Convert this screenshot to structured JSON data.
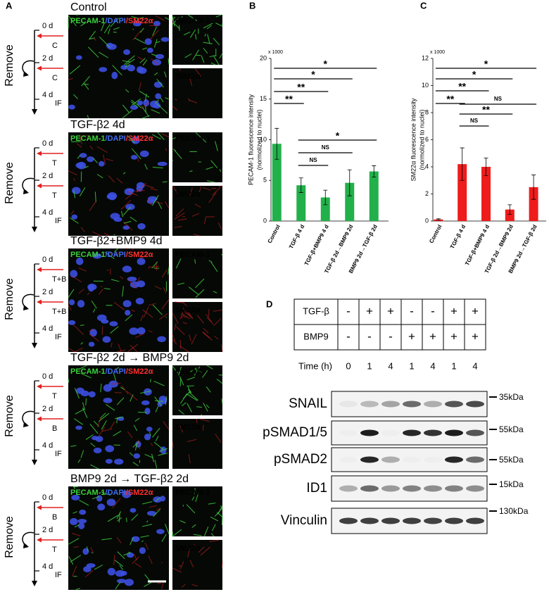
{
  "panel_labels": {
    "a": "A",
    "b": "B",
    "c": "C",
    "d": "D"
  },
  "panel_a": {
    "stain": {
      "pecam": "PECAM-1",
      "dapi": "/DAPI",
      "sm22": "/SM22α",
      "sm22_alone": "SM22α"
    },
    "timeline": {
      "remove": "Remove",
      "day0": "0 d",
      "day2": "2 d",
      "day4": "4 d",
      "readout": "IF"
    },
    "rows": [
      {
        "title": "Control",
        "treatments": [
          "C",
          "C"
        ]
      },
      {
        "title": "TGF-β2 4d",
        "treatments": [
          "T",
          "T"
        ]
      },
      {
        "title": "TGF-β2+BMP9 4d",
        "treatments": [
          "T+B",
          "T+B"
        ]
      },
      {
        "title": "TGF-β2 2d → BMP9 2d",
        "treatments": [
          "T",
          "B"
        ]
      },
      {
        "title": "BMP9 2d → TGF-β2 2d",
        "treatments": [
          "B",
          "T"
        ]
      }
    ]
  },
  "chart_data": [
    {
      "type": "bar",
      "ylabel": [
        "PECAM-1 fluorescence intensity",
        "(normolized to nuclei)"
      ],
      "multiplier": "x 1000",
      "categories": [
        "Control",
        "TGF-β 4 d",
        "TGF-β+BMP9 4 d",
        "TGF-β 2d→BMP9 2d",
        "BMP9 2d→TGF-β 2d"
      ],
      "values": [
        9.5,
        4.4,
        2.9,
        4.7,
        6.1
      ],
      "errors": [
        1.9,
        0.9,
        0.9,
        1.6,
        0.7
      ],
      "color": "#22b04b",
      "ylim": [
        0,
        20
      ],
      "yticks": [
        0,
        5,
        10,
        15,
        20
      ],
      "significance": [
        "*",
        "*",
        "**",
        "**",
        "*",
        "NS",
        "NS"
      ]
    },
    {
      "type": "bar",
      "ylabel": [
        "SM22α fluorescence intensity",
        "(normolized to nuclei)"
      ],
      "multiplier": "x 1000",
      "categories": [
        "Control",
        "TGF-β 4 d",
        "TGF-β+BMP9 4 d",
        "TGF-β 2d→BMP9 2d",
        "BMP9 2d→TGF-β 2d"
      ],
      "values": [
        0.12,
        4.2,
        4.0,
        0.85,
        2.5
      ],
      "errors": [
        0.05,
        1.2,
        0.65,
        0.35,
        0.9
      ],
      "color": "#ee1c1c",
      "ylim": [
        0,
        12
      ],
      "yticks": [
        0,
        2,
        4,
        6,
        8,
        10,
        12
      ],
      "significance": [
        "*",
        "*",
        "**",
        "NS",
        "**",
        "**",
        "NS"
      ]
    }
  ],
  "panel_d": {
    "conditions": [
      {
        "label": "TGF-β",
        "values": [
          "-",
          "+",
          "+",
          "-",
          "-",
          "+",
          "+"
        ]
      },
      {
        "label": "BMP9",
        "values": [
          "-",
          "-",
          "-",
          "+",
          "+",
          "+",
          "+"
        ]
      }
    ],
    "time": {
      "label": "Time (h)",
      "values": [
        0,
        1,
        4,
        1,
        4,
        1,
        4
      ]
    },
    "blots": [
      {
        "label": "SNAIL",
        "marker": "35kDa"
      },
      {
        "label": "pSMAD1/5",
        "marker": "55kDa"
      },
      {
        "label": "pSMAD2",
        "marker": "55kDa"
      },
      {
        "label": "ID1",
        "marker": "15kDa"
      },
      {
        "label": "Vinculin",
        "marker": "130kDa"
      }
    ]
  }
}
